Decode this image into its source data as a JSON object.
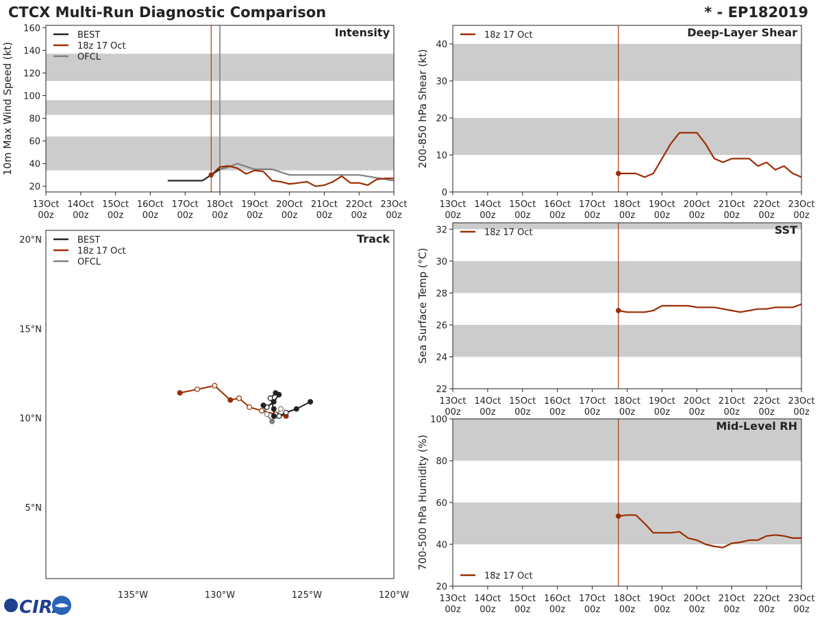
{
  "header": {
    "title": "CTCX Multi-Run Diagnostic Comparison",
    "storm_id": "* - EP182019"
  },
  "colors": {
    "best": "#222222",
    "run": "#9b2c00",
    "ofcl": "#7f7f7f",
    "band": "#cccccc"
  },
  "logo": {
    "text": "CIRA"
  },
  "time_axis": {
    "day_labels": [
      "13Oct",
      "14Oct",
      "15Oct",
      "16Oct",
      "17Oct",
      "18Oct",
      "19Oct",
      "20Oct",
      "21Oct",
      "22Oct",
      "23Oct"
    ],
    "hour_label": "00z"
  },
  "chart_data": [
    {
      "id": "intensity",
      "type": "line",
      "title": "Intensity",
      "ylabel": "10m Max Wind Speed (kt)",
      "xlim": [
        0,
        10
      ],
      "ylim": [
        15,
        162
      ],
      "yticks": [
        20,
        40,
        60,
        80,
        100,
        120,
        140,
        160
      ],
      "bands": [
        [
          34,
          64
        ],
        [
          83,
          96
        ],
        [
          113,
          137
        ]
      ],
      "vlines": [
        {
          "x": 4.75,
          "series": "run"
        },
        {
          "x": 5.0,
          "series": "ofcl"
        }
      ],
      "legend": [
        "BEST",
        "18z 17 Oct",
        "OFCL"
      ],
      "series": [
        {
          "name": "BEST",
          "key": "best",
          "x": [
            3.5,
            3.75,
            4.0,
            4.25,
            4.5,
            4.75,
            5.0,
            5.25
          ],
          "y": [
            25,
            25,
            25,
            25,
            25,
            30,
            35,
            37
          ]
        },
        {
          "name": "OFCL",
          "key": "ofcl",
          "x": [
            5.0,
            5.25,
            5.5,
            6.0,
            6.5,
            7.0,
            8.0,
            9.0,
            10.0
          ],
          "y": [
            35,
            37,
            40,
            35,
            35,
            30,
            30,
            30,
            25
          ]
        },
        {
          "name": "18z 17 Oct",
          "key": "run",
          "marker_first": true,
          "x": [
            4.75,
            5.0,
            5.25,
            5.5,
            5.75,
            6.0,
            6.25,
            6.5,
            6.75,
            7.0,
            7.25,
            7.5,
            7.75,
            8.0,
            8.25,
            8.5,
            8.75,
            9.0,
            9.25,
            9.5,
            9.75,
            10.0
          ],
          "y": [
            30,
            37,
            38,
            36,
            31,
            34,
            33,
            25,
            24,
            22,
            23,
            24,
            20,
            21,
            24,
            29,
            23,
            23,
            21,
            26,
            27,
            27
          ]
        }
      ]
    },
    {
      "id": "shear",
      "type": "line",
      "title": "Deep-Layer Shear",
      "ylabel": "200-850 hPa Shear (kt)",
      "xlim": [
        0,
        10
      ],
      "ylim": [
        0,
        45
      ],
      "yticks": [
        0,
        10,
        20,
        30,
        40
      ],
      "bands": [
        [
          10,
          20
        ],
        [
          30,
          40
        ]
      ],
      "vlines": [
        {
          "x": 4.75,
          "series": "run"
        }
      ],
      "legend": [
        "18z 17 Oct"
      ],
      "series": [
        {
          "name": "18z 17 Oct",
          "key": "run",
          "marker_first": true,
          "x": [
            4.75,
            5.0,
            5.25,
            5.5,
            5.75,
            6.0,
            6.25,
            6.5,
            6.75,
            7.0,
            7.25,
            7.5,
            7.75,
            8.0,
            8.25,
            8.5,
            8.75,
            9.0,
            9.25,
            9.5,
            9.75,
            10.0
          ],
          "y": [
            5,
            5,
            5,
            4,
            5,
            9,
            13,
            16,
            16,
            16,
            13,
            9,
            8,
            9,
            9,
            9,
            7,
            8,
            6,
            7,
            5,
            4
          ]
        }
      ]
    },
    {
      "id": "sst",
      "type": "line",
      "title": "SST",
      "ylabel": "Sea Surface Temp (°C)",
      "xlim": [
        0,
        10
      ],
      "ylim": [
        22,
        32.4
      ],
      "yticks": [
        22,
        24,
        26,
        28,
        30,
        32
      ],
      "bands": [
        [
          24,
          26
        ],
        [
          28,
          30
        ],
        [
          32,
          32.4
        ]
      ],
      "vlines": [
        {
          "x": 4.75,
          "series": "run"
        }
      ],
      "legend": [
        "18z 17 Oct"
      ],
      "series": [
        {
          "name": "18z 17 Oct",
          "key": "run",
          "marker_first": true,
          "x": [
            4.75,
            5.0,
            5.25,
            5.5,
            5.75,
            6.0,
            6.25,
            6.5,
            6.75,
            7.0,
            7.25,
            7.5,
            7.75,
            8.0,
            8.25,
            8.5,
            8.75,
            9.0,
            9.25,
            9.5,
            9.75,
            10.0
          ],
          "y": [
            26.9,
            26.8,
            26.8,
            26.8,
            26.9,
            27.2,
            27.2,
            27.2,
            27.2,
            27.1,
            27.1,
            27.1,
            27.0,
            26.9,
            26.8,
            26.9,
            27.0,
            27.0,
            27.1,
            27.1,
            27.1,
            27.3
          ]
        }
      ]
    },
    {
      "id": "rh",
      "type": "line",
      "title": "Mid-Level RH",
      "ylabel": "700-500 hPa Humidity (%)",
      "xlim": [
        0,
        10
      ],
      "ylim": [
        20,
        100
      ],
      "yticks": [
        20,
        40,
        60,
        80,
        100
      ],
      "bands": [
        [
          40,
          60
        ],
        [
          80,
          100
        ]
      ],
      "vlines": [
        {
          "x": 4.75,
          "series": "run"
        }
      ],
      "legend": [
        "18z 17 Oct"
      ],
      "legend_position": "bottom-left",
      "series": [
        {
          "name": "18z 17 Oct",
          "key": "run",
          "marker_first": true,
          "x": [
            4.75,
            5.0,
            5.25,
            5.5,
            5.75,
            6.0,
            6.25,
            6.5,
            6.75,
            7.0,
            7.25,
            7.5,
            7.75,
            8.0,
            8.25,
            8.5,
            8.75,
            9.0,
            9.25,
            9.5,
            9.75,
            10.0
          ],
          "y": [
            53.5,
            54,
            54,
            50,
            45.5,
            45.5,
            45.5,
            46,
            43,
            42,
            40,
            39,
            38.5,
            40.5,
            41,
            42,
            42,
            44,
            44.5,
            44,
            43,
            43
          ]
        }
      ]
    },
    {
      "id": "track",
      "type": "scatter",
      "title": "Track",
      "xlim": [
        -140,
        -120
      ],
      "ylim": [
        1,
        20.5
      ],
      "xtick_values": [
        -135,
        -130,
        -125,
        -120
      ],
      "xtick_labels": [
        "135°W",
        "130°W",
        "125°W",
        "120°W"
      ],
      "ytick_values": [
        5,
        10,
        15,
        20
      ],
      "ytick_labels": [
        "5°N",
        "10°N",
        "15°N",
        "20°N"
      ],
      "legend": [
        "BEST",
        "18z 17 Oct",
        "OFCL"
      ],
      "series": [
        {
          "name": "BEST",
          "key": "best",
          "lon": [
            -124.8,
            -125.6,
            -126.2,
            -126.6,
            -126.9,
            -126.9,
            -127.1,
            -126.8,
            -126.6,
            -126.9,
            -127.3,
            -127.5
          ],
          "lat": [
            10.9,
            10.5,
            10.3,
            10.1,
            10.1,
            10.5,
            11.1,
            11.4,
            11.3,
            10.9,
            10.6,
            10.7
          ],
          "filled": [
            true,
            true,
            false,
            false,
            true,
            true,
            false,
            true,
            true,
            true,
            false,
            true
          ]
        },
        {
          "name": "OFCL",
          "key": "ofcl",
          "lon": [
            -127.5,
            -127.3,
            -127.0,
            -126.8,
            -126.5
          ],
          "lat": [
            10.7,
            10.2,
            9.8,
            10.1,
            10.5
          ],
          "filled": [
            true,
            false,
            true,
            false,
            false
          ]
        },
        {
          "name": "18z 17 Oct",
          "key": "run",
          "lon": [
            -126.2,
            -126.8,
            -127.6,
            -128.3,
            -128.9,
            -129.4,
            -130.3,
            -131.3,
            -132.3
          ],
          "lat": [
            10.1,
            10.2,
            10.4,
            10.6,
            11.1,
            11.0,
            11.8,
            11.6,
            11.4
          ],
          "filled": [
            true,
            false,
            false,
            false,
            false,
            true,
            false,
            false,
            true
          ]
        }
      ]
    }
  ]
}
